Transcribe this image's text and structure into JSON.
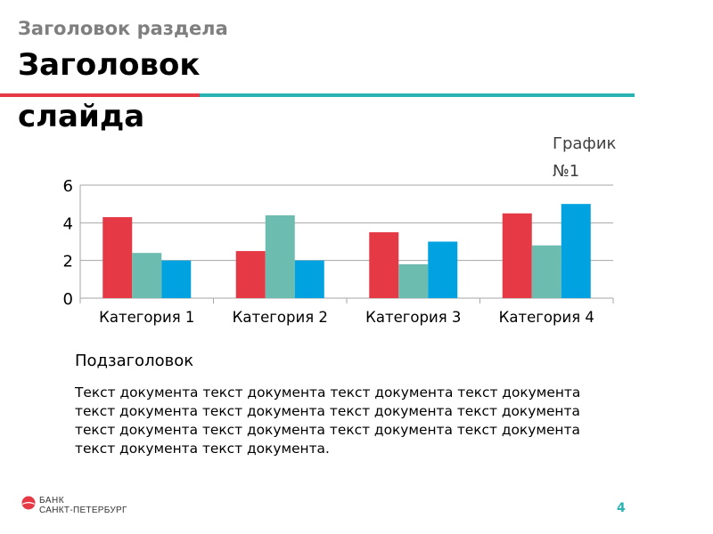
{
  "slide": {
    "section_title": "Заголовок раздела",
    "title": "Заголовок слайда",
    "chart_title": "График №1",
    "subtitle": "Подзаголовок",
    "body": "Текст документа текст документа текст документа текст документа текст документа текст документа текст документа текст документа текст документа текст документа текст документа текст документа текст документа текст документа.",
    "page_number": "4"
  },
  "logo": {
    "line1": "БАНК",
    "line2": "САНКТ-ПЕТЕРБУРГ",
    "color": "#e63946"
  },
  "chart_data": {
    "type": "bar",
    "categories": [
      "Категория 1",
      "Категория 2",
      "Категория 3",
      "Категория 4"
    ],
    "series": [
      {
        "values": [
          4.3,
          2.5,
          3.5,
          4.5
        ],
        "color": "#e63946"
      },
      {
        "values": [
          2.4,
          4.4,
          1.8,
          2.8
        ],
        "color": "#6cbcb0"
      },
      {
        "values": [
          2.0,
          2.0,
          3.0,
          5.0
        ],
        "color": "#00a3e0"
      }
    ],
    "title": "График №1",
    "ylim": [
      0,
      6
    ],
    "yticks": [
      0,
      2,
      4,
      6
    ],
    "grid": true
  }
}
